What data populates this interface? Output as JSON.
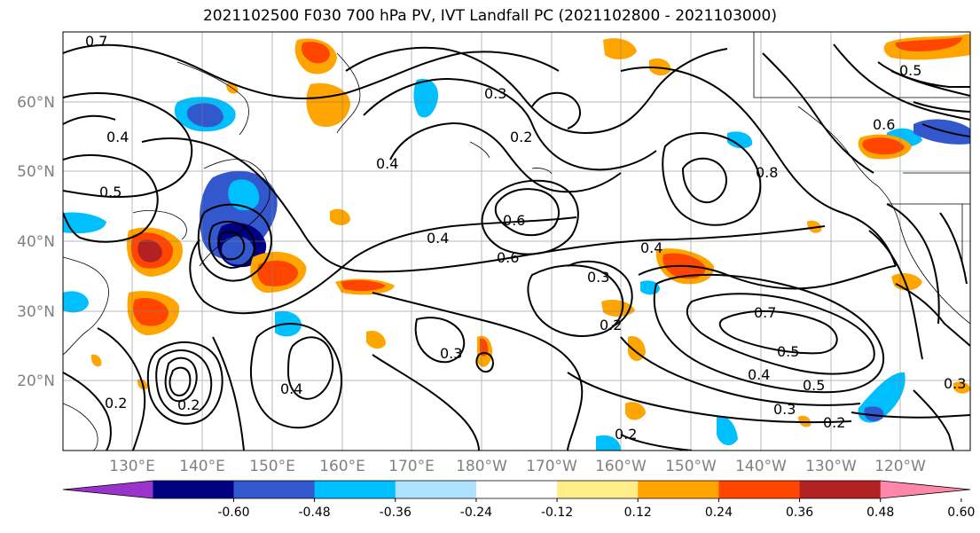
{
  "title": "2021102500 F030 700 hPa PV, IVT Landfall PC (2021102800 - 2021103000)",
  "axes": {
    "lat_labels": [
      "60°N",
      "50°N",
      "40°N",
      "30°N",
      "20°N"
    ],
    "lon_labels": [
      "130°E",
      "140°E",
      "150°E",
      "160°E",
      "170°E",
      "180°W",
      "170°W",
      "160°W",
      "150°W",
      "140°W",
      "130°W",
      "120°W"
    ]
  },
  "contour_labels": [
    "0.7",
    "0.3",
    "0.2",
    "0.4",
    "0.5",
    "0.4",
    "0.6",
    "0.6",
    "0.4",
    "0.4",
    "0.3",
    "0.2",
    "0.3",
    "0.4",
    "0.3",
    "0.2",
    "0.2",
    "0.7",
    "0.5",
    "0.4",
    "0.5",
    "0.3",
    "0.2",
    "0.6",
    "0.8",
    "0.5",
    "0.2"
  ],
  "colorbar": {
    "colors": [
      "#9933cc",
      "#000080",
      "#3357cc",
      "#00bfff",
      "#aee3ff",
      "#ffffff",
      "#ffee88",
      "#ffa500",
      "#ff4500",
      "#b22222",
      "#ff88aa"
    ],
    "ticks": [
      "-0.60",
      "-0.48",
      "-0.36",
      "-0.24",
      "-0.12",
      "0.12",
      "0.24",
      "0.36",
      "0.48",
      "0.60"
    ]
  }
}
